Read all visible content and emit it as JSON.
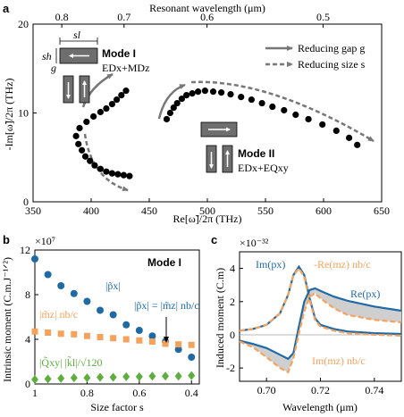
{
  "panels": {
    "a": {
      "label": "a"
    },
    "b": {
      "label": "b"
    },
    "c": {
      "label": "c"
    }
  },
  "colors": {
    "black": "#000000",
    "blue": "#1f6aa5",
    "orange": "#f5a25d",
    "green": "#5dae3c",
    "grey_arrow": "#777777",
    "grey_fill": "#cfcfcf",
    "rect_fill": "#6e6e6e"
  },
  "annotations_a": {
    "sl": "sl",
    "sh": "sh",
    "g": "g",
    "mode1_title": "Mode I",
    "mode1_desc": "EDx+MDz",
    "mode2_title": "Mode II",
    "mode2_desc": "EDx+EQxy",
    "legend_gap": "Reducing gap g",
    "legend_size": "Reducing size s"
  },
  "annotations_b": {
    "mode": "Mode I",
    "p_label": "|p̃x|",
    "m_label": "|m̃z| nb/c",
    "q_label": "|Q̃xy| |k̃l|/√120",
    "eq_label": "|p̃x| = |m̃z| nb/c",
    "exp": "×10⁷"
  },
  "annotations_c": {
    "exp": "×10⁻³²",
    "im_p": "Im(px)",
    "neg_re_m": "-Re(mz) nb/c",
    "re_p": "Re(px)",
    "im_m": "Im(mz) nb/c"
  },
  "chart_data": [
    {
      "type": "scatter",
      "panel": "a",
      "xlabel": "Re[ω̃]/2π (THz)",
      "ylabel": "-Im[ω̃]/2π (THz)",
      "top_xlabel": "Resonant wavelength (μm)",
      "xlim": [
        350,
        650
      ],
      "ylim": [
        0,
        20
      ],
      "xticks": [
        350,
        400,
        450,
        500,
        550,
        600,
        650
      ],
      "yticks": [
        0,
        10,
        20
      ],
      "top_ticks": [
        {
          "label": "0.8",
          "freq": 374.7
        },
        {
          "label": "0.7",
          "freq": 428.3
        },
        {
          "label": "0.6",
          "freq": 499.7
        },
        {
          "label": "0.5",
          "freq": 599.6
        }
      ],
      "series": [
        {
          "values": [
            {
              "x": 433,
              "y": 2.9
            },
            {
              "x": 428,
              "y": 3.0
            },
            {
              "x": 423,
              "y": 3.1
            },
            {
              "x": 418,
              "y": 3.2
            },
            {
              "x": 413,
              "y": 3.4
            },
            {
              "x": 408,
              "y": 3.7
            },
            {
              "x": 403,
              "y": 4.1
            },
            {
              "x": 399,
              "y": 4.6
            },
            {
              "x": 395,
              "y": 5.1
            },
            {
              "x": 392,
              "y": 5.8
            },
            {
              "x": 389,
              "y": 6.5
            },
            {
              "x": 387,
              "y": 7.4
            },
            {
              "x": 390,
              "y": 8.3
            },
            {
              "x": 396,
              "y": 9.0
            },
            {
              "x": 402,
              "y": 9.6
            },
            {
              "x": 408,
              "y": 10.1
            },
            {
              "x": 413,
              "y": 10.5
            },
            {
              "x": 418,
              "y": 11.0
            },
            {
              "x": 422,
              "y": 11.5
            },
            {
              "x": 426,
              "y": 12.0
            },
            {
              "x": 430,
              "y": 12.5
            }
          ]
        },
        {
          "values": [
            {
              "x": 465,
              "y": 9.3
            },
            {
              "x": 468,
              "y": 10.0
            },
            {
              "x": 471,
              "y": 10.6
            },
            {
              "x": 474,
              "y": 11.1
            },
            {
              "x": 478,
              "y": 11.6
            },
            {
              "x": 482,
              "y": 12.0
            },
            {
              "x": 487,
              "y": 12.2
            },
            {
              "x": 492,
              "y": 12.4
            },
            {
              "x": 498,
              "y": 12.5
            },
            {
              "x": 505,
              "y": 12.4
            },
            {
              "x": 512,
              "y": 12.3
            },
            {
              "x": 520,
              "y": 12.1
            },
            {
              "x": 529,
              "y": 11.8
            },
            {
              "x": 538,
              "y": 11.5
            },
            {
              "x": 547,
              "y": 11.1
            },
            {
              "x": 556,
              "y": 10.7
            },
            {
              "x": 566,
              "y": 10.3
            },
            {
              "x": 576,
              "y": 9.8
            },
            {
              "x": 587,
              "y": 9.3
            },
            {
              "x": 599,
              "y": 8.7
            },
            {
              "x": 611,
              "y": 8.0
            },
            {
              "x": 622,
              "y": 7.2
            },
            {
              "x": 629,
              "y": 6.4
            }
          ]
        }
      ]
    },
    {
      "type": "scatter",
      "panel": "b",
      "xlabel": "Size factor s",
      "ylabel": "Intrinsic moment (C.m.J⁻¹ᐟ²)",
      "xlim": [
        1.0,
        0.37
      ],
      "ylim": [
        0,
        12
      ],
      "xticks": [
        "1",
        "0.8",
        "0.6",
        "0.4"
      ],
      "xtick_values": [
        1.0,
        0.8,
        0.6,
        0.4
      ],
      "yticks": [
        0,
        4,
        8,
        12
      ],
      "categories": [
        1.0,
        0.95,
        0.9,
        0.85,
        0.8,
        0.75,
        0.7,
        0.65,
        0.6,
        0.55,
        0.5,
        0.45,
        0.4
      ],
      "series": [
        {
          "name": "|p̃x|",
          "color": "#1f6aa5",
          "marker": "circle",
          "values": [
            11.2,
            9.8,
            8.8,
            8.1,
            7.4,
            6.6,
            6.2,
            5.3,
            4.8,
            4.3,
            3.8,
            3.1,
            2.4
          ]
        },
        {
          "name": "|m̃z| nb/c",
          "color": "#f5a25d",
          "marker": "square",
          "values": [
            4.7,
            4.6,
            4.5,
            4.45,
            4.3,
            4.2,
            4.1,
            4.0,
            3.9,
            3.8,
            3.6,
            3.55,
            3.5
          ]
        },
        {
          "name": "|Q̃xy| |k̃l|/√120",
          "color": "#5dae3c",
          "marker": "diamond",
          "values": [
            0.4,
            0.45,
            0.5,
            0.55,
            0.55,
            0.6,
            0.6,
            0.65,
            0.65,
            0.7,
            0.7,
            0.7,
            0.75
          ]
        }
      ]
    },
    {
      "type": "line",
      "panel": "c",
      "xlabel": "Wavelength (μm)",
      "ylabel": "Induced moment (C.m)",
      "xlim": [
        0.69,
        0.75
      ],
      "ylim": [
        -2.8,
        5.0
      ],
      "xticks": [
        0.7,
        0.72,
        0.74
      ],
      "yticks": [
        -2,
        0,
        2,
        4
      ],
      "series": [
        {
          "name": "Im(px)",
          "color": "#1f6aa5",
          "style": "solid",
          "x": [
            0.69,
            0.695,
            0.7,
            0.705,
            0.708,
            0.71,
            0.712,
            0.714,
            0.716,
            0.718,
            0.72,
            0.725,
            0.73,
            0.74,
            0.75
          ],
          "y": [
            0.25,
            0.35,
            0.6,
            1.3,
            2.4,
            3.6,
            4.1,
            3.6,
            2.2,
            1.0,
            0.6,
            0.35,
            0.2,
            0.1,
            0.05
          ]
        },
        {
          "name": "-Re(mz) nb/c",
          "color": "#f5a25d",
          "style": "dashed",
          "x": [
            0.69,
            0.695,
            0.7,
            0.705,
            0.708,
            0.71,
            0.712,
            0.714,
            0.716,
            0.718,
            0.72,
            0.725,
            0.73,
            0.74,
            0.75
          ],
          "y": [
            0.25,
            0.35,
            0.6,
            1.3,
            2.4,
            3.6,
            4.0,
            3.5,
            2.1,
            0.9,
            0.5,
            0.25,
            0.1,
            0.0,
            -0.05
          ]
        },
        {
          "name": "Re(px)",
          "color": "#1f6aa5",
          "style": "solid",
          "x": [
            0.69,
            0.695,
            0.7,
            0.705,
            0.708,
            0.71,
            0.712,
            0.714,
            0.716,
            0.718,
            0.72,
            0.725,
            0.73,
            0.74,
            0.75
          ],
          "y": [
            -0.35,
            -0.55,
            -0.8,
            -1.2,
            -1.45,
            -1.1,
            0.5,
            2.0,
            2.7,
            2.8,
            2.65,
            2.3,
            2.05,
            1.7,
            1.45
          ]
        },
        {
          "name": "Im(mz) nb/c",
          "color": "#f5a25d",
          "style": "dashed",
          "x": [
            0.69,
            0.695,
            0.7,
            0.705,
            0.708,
            0.71,
            0.712,
            0.714,
            0.716,
            0.718,
            0.72,
            0.725,
            0.73,
            0.74,
            0.75
          ],
          "y": [
            -0.4,
            -0.75,
            -1.35,
            -2.0,
            -2.25,
            -1.4,
            0.1,
            1.4,
            2.3,
            2.5,
            2.2,
            1.6,
            1.2,
            0.9,
            0.75
          ]
        }
      ]
    }
  ]
}
